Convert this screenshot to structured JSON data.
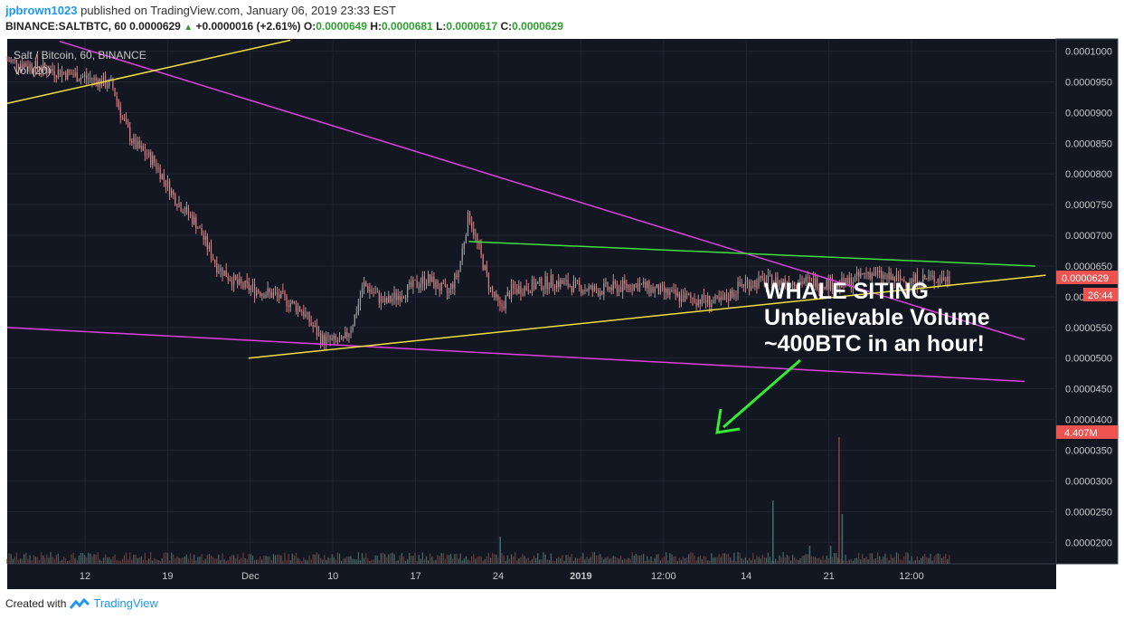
{
  "header": {
    "user": "jpbrown1023",
    "published": "published on TradingView.com, January 06, 2019 23:33 EST",
    "symbol": "BINANCE:SALTBTC, 60",
    "last": "0.0000629",
    "change": "+0.0000016 (+2.61%)",
    "o_label": "O:",
    "o": "0.0000649",
    "h_label": "H:",
    "h": "0.0000681",
    "l_label": "L:",
    "l": "0.0000617",
    "c_label": "C:",
    "c": "0.0000629"
  },
  "footer": {
    "created": "Created with",
    "brand": "TradingView"
  },
  "colors": {
    "bg": "#131722",
    "grid": "#1f2433",
    "up": "#a0a0a0",
    "down": "#ec7a7a",
    "accent": "#ef5350",
    "trend_magenta": "#e040e0",
    "trend_yellow": "#f0e040",
    "trend_green": "#40e040",
    "arrow": "#33ee33"
  },
  "chart_data": {
    "type": "candlestick",
    "title": "Salt / Bitcoin, 60, BINANCE",
    "subtitle": "Vol (20)",
    "ylim": [
      1.65e-05,
      0.000102
    ],
    "price_axis": [
      "0.0001000",
      "0.0000950",
      "0.0000900",
      "0.0000850",
      "0.0000800",
      "0.0000750",
      "0.0000700",
      "0.0000650",
      "0.0000600",
      "0.0000550",
      "0.0000500",
      "0.0000450",
      "0.0000400",
      "0.0000350",
      "0.0000300",
      "0.0000250",
      "0.0000200"
    ],
    "x_ticks": [
      "12",
      "19",
      "Dec",
      "10",
      "17",
      "24",
      "2019",
      "12:00",
      "14",
      "21",
      "12:00"
    ],
    "last_price_label": "0.0000629",
    "countdown_label": "26:44",
    "volume_label": "4.407M",
    "price_path": [
      [
        0,
        9.85e-05
      ],
      [
        4,
        9.7e-05
      ],
      [
        8,
        9.55e-05
      ],
      [
        10,
        9.45e-05
      ],
      [
        11,
        8.9e-05
      ],
      [
        12,
        8.5e-05
      ],
      [
        14,
        8.2e-05
      ],
      [
        16,
        7.6e-05
      ],
      [
        18,
        7.2e-05
      ],
      [
        20,
        6.5e-05
      ],
      [
        22,
        6.2e-05
      ],
      [
        26,
        6e-05
      ],
      [
        28,
        5.8e-05
      ],
      [
        30,
        5.3e-05
      ],
      [
        32,
        5.25e-05
      ],
      [
        33,
        5.6e-05
      ],
      [
        34,
        6.2e-05
      ],
      [
        36,
        5.9e-05
      ],
      [
        38,
        6.1e-05
      ],
      [
        40,
        6.3e-05
      ],
      [
        42,
        6.05e-05
      ],
      [
        43,
        6.4e-05
      ],
      [
        44,
        7.35e-05
      ],
      [
        45,
        6.75e-05
      ],
      [
        46,
        6.15e-05
      ],
      [
        47,
        5.8e-05
      ],
      [
        48,
        6.1e-05
      ],
      [
        52,
        6.25e-05
      ],
      [
        56,
        6.1e-05
      ],
      [
        60,
        6.2e-05
      ],
      [
        64,
        6e-05
      ],
      [
        68,
        5.9e-05
      ],
      [
        70,
        6.2e-05
      ],
      [
        72,
        6.25e-05
      ],
      [
        76,
        6.25e-05
      ],
      [
        80,
        6.2e-05
      ],
      [
        82,
        6.4e-05
      ],
      [
        84,
        6.3e-05
      ],
      [
        86,
        6.25e-05
      ],
      [
        88,
        6.3e-05
      ],
      [
        90,
        6.29e-05
      ]
    ],
    "trendlines": [
      {
        "color": "magenta",
        "points": [
          [
            5,
            0.0001016
          ],
          [
            97,
            5.3e-05
          ]
        ]
      },
      {
        "color": "magenta",
        "points": [
          [
            0,
            5.5e-05
          ],
          [
            97,
            4.62e-05
          ]
        ]
      },
      {
        "color": "yellow",
        "points": [
          [
            0,
            9.15e-05
          ],
          [
            27,
            0.0001018
          ]
        ]
      },
      {
        "color": "yellow",
        "points": [
          [
            23,
            5e-05
          ],
          [
            99,
            6.35e-05
          ]
        ]
      },
      {
        "color": "green",
        "points": [
          [
            44,
            6.9e-05
          ],
          [
            98,
            6.5e-05
          ]
        ]
      }
    ],
    "annotation": {
      "lines": [
        "WHALE SITING",
        "Unbelievable Volume",
        "~400BTC in an hour!"
      ]
    }
  }
}
